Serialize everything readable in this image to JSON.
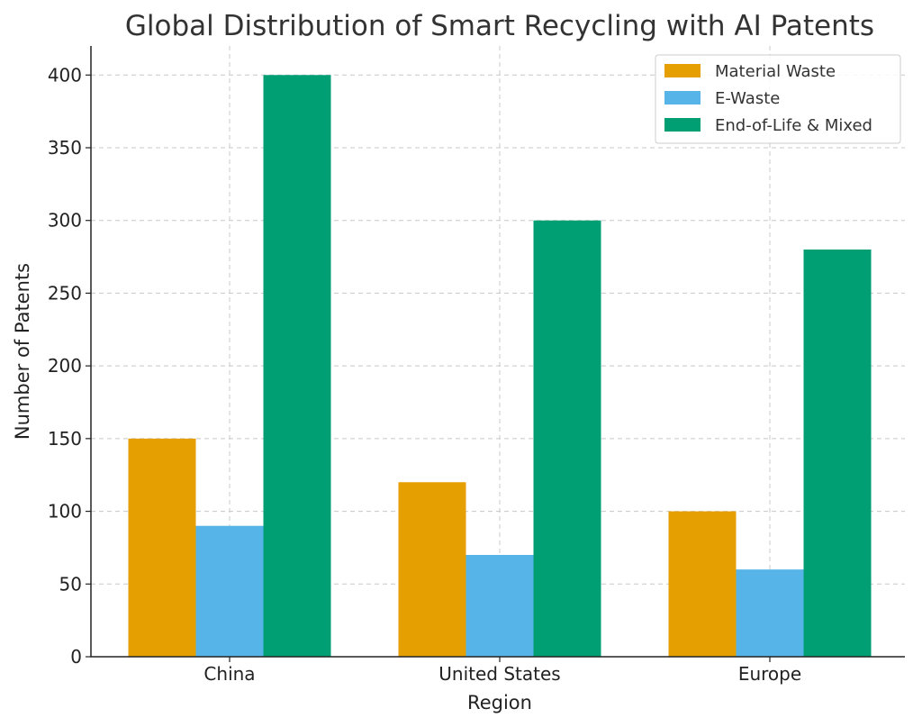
{
  "chart_data": {
    "type": "bar",
    "title": "Global Distribution of Smart Recycling with AI Patents",
    "xlabel": "Region",
    "ylabel": "Number of Patents",
    "categories": [
      "China",
      "United States",
      "Europe"
    ],
    "series": [
      {
        "name": "Material Waste",
        "color": "#E69F00",
        "values": [
          150,
          120,
          100
        ]
      },
      {
        "name": "E-Waste",
        "color": "#56B4E9",
        "values": [
          90,
          70,
          60
        ]
      },
      {
        "name": "End-of-Life & Mixed",
        "color": "#009E73",
        "values": [
          400,
          300,
          280
        ]
      }
    ],
    "ylim": [
      0,
      420
    ],
    "yticks": [
      0,
      50,
      100,
      150,
      200,
      250,
      300,
      350,
      400
    ],
    "grid": true,
    "legend_position": "top-right"
  }
}
